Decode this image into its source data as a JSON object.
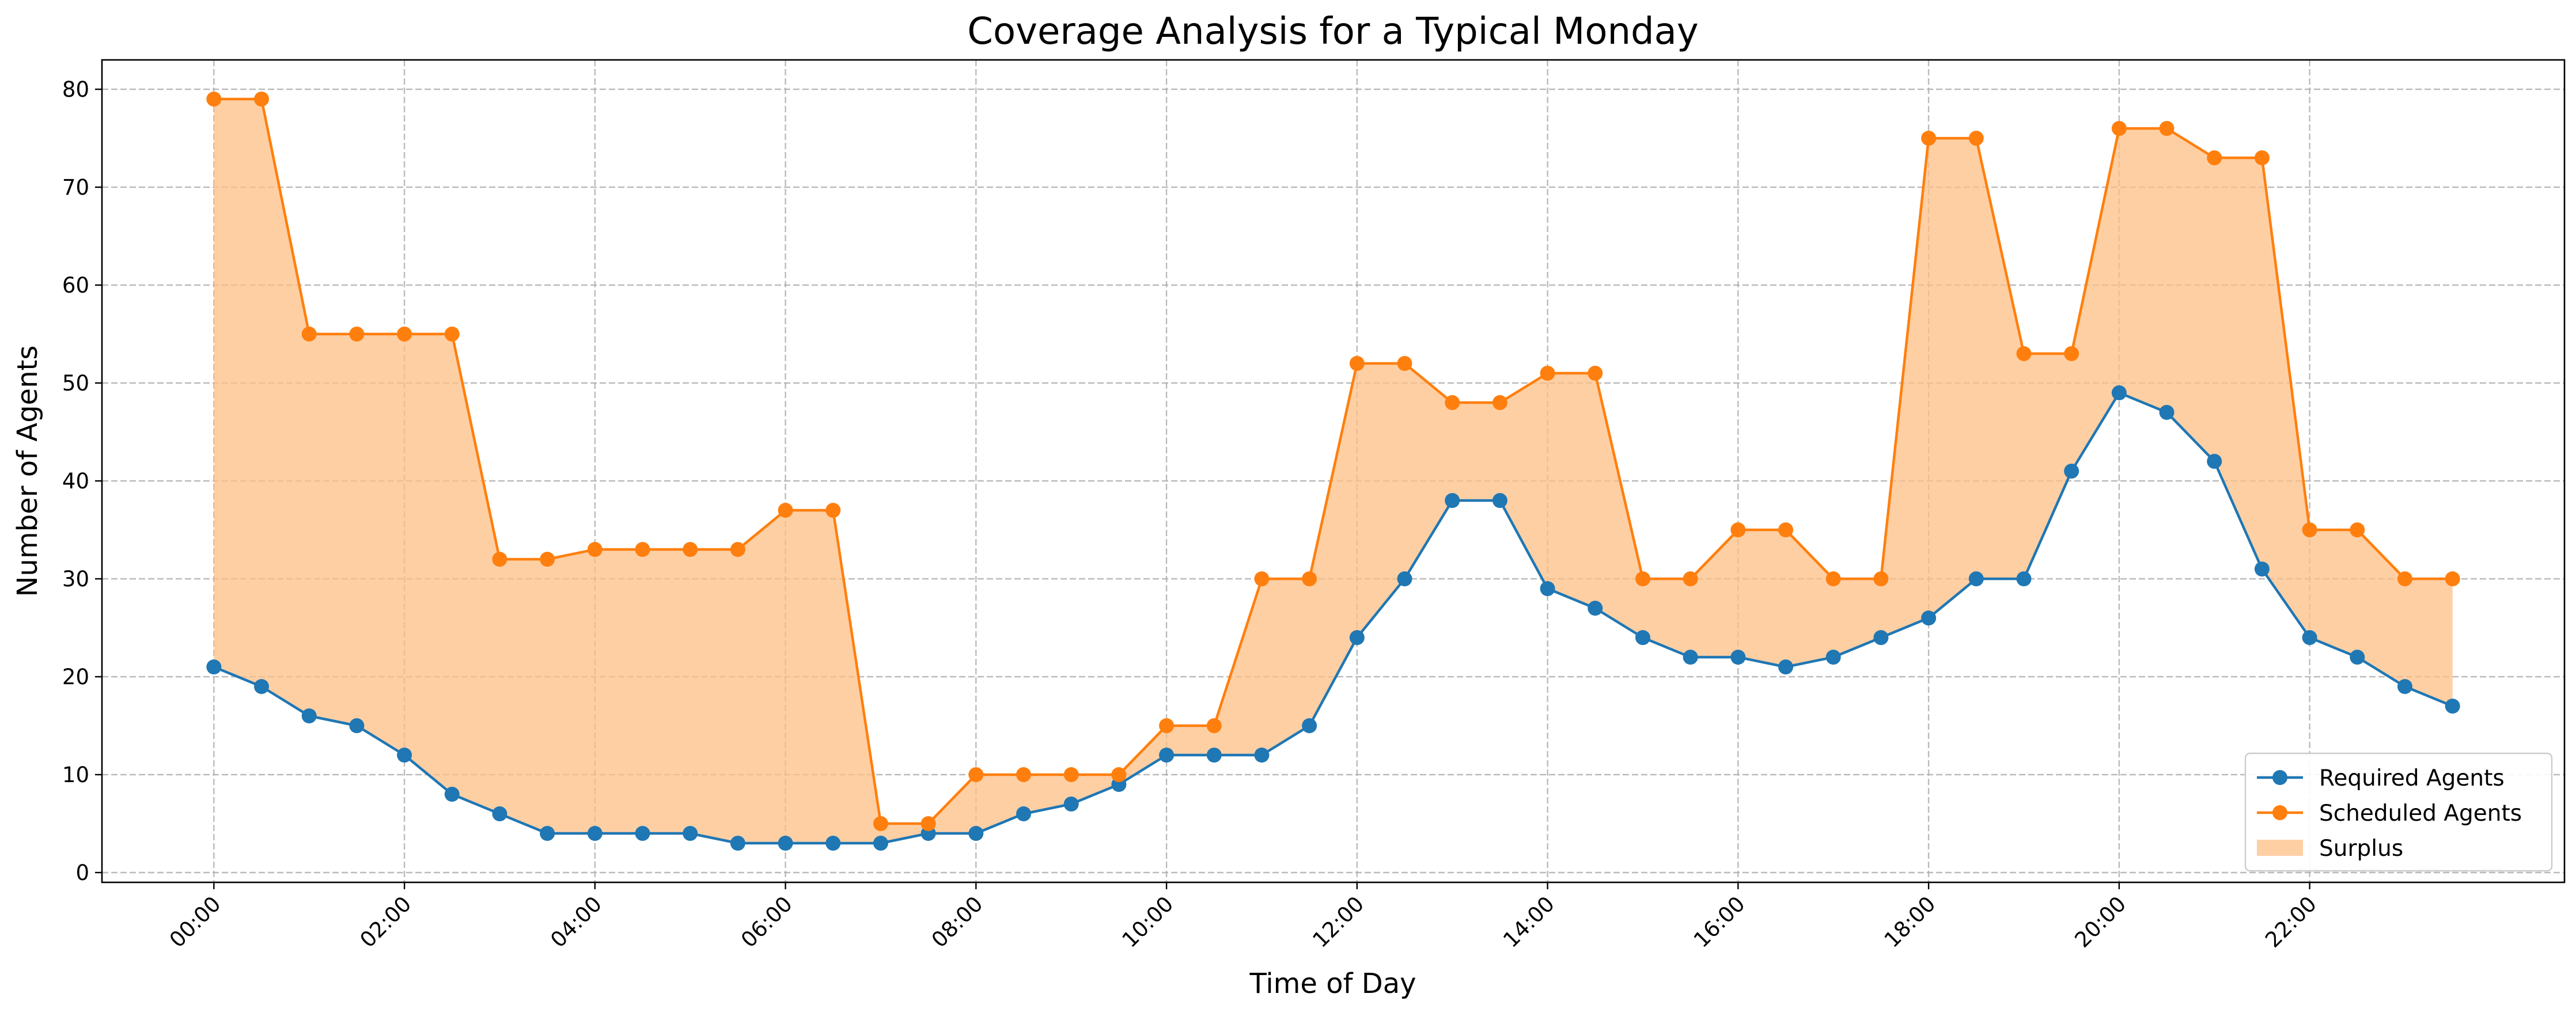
{
  "chart_data": {
    "type": "line",
    "title": "Coverage Analysis for a Typical Monday",
    "xlabel": "Time of Day",
    "ylabel": "Number of Agents",
    "x": [
      "00:00",
      "00:30",
      "01:00",
      "01:30",
      "02:00",
      "02:30",
      "03:00",
      "03:30",
      "04:00",
      "04:30",
      "05:00",
      "05:30",
      "06:00",
      "06:30",
      "07:00",
      "07:30",
      "08:00",
      "08:30",
      "09:00",
      "09:30",
      "10:00",
      "10:30",
      "11:00",
      "11:30",
      "12:00",
      "12:30",
      "13:00",
      "13:30",
      "14:00",
      "14:30",
      "15:00",
      "15:30",
      "16:00",
      "16:30",
      "17:00",
      "17:30",
      "18:00",
      "18:30",
      "19:00",
      "19:30",
      "20:00",
      "20:30",
      "21:00",
      "21:30",
      "22:00",
      "22:30",
      "23:00",
      "23:30"
    ],
    "xticks": [
      "00:00",
      "02:00",
      "04:00",
      "06:00",
      "08:00",
      "10:00",
      "12:00",
      "14:00",
      "16:00",
      "18:00",
      "20:00",
      "22:00"
    ],
    "yticks": [
      0,
      10,
      20,
      30,
      40,
      50,
      60,
      70,
      80
    ],
    "ylim": [
      0,
      83
    ],
    "grid": true,
    "legend_position": "lower right",
    "series": [
      {
        "name": "Required Agents",
        "color": "#1f77b4",
        "values": [
          21,
          19,
          16,
          15,
          12,
          8,
          6,
          4,
          4,
          4,
          4,
          3,
          3,
          3,
          3,
          4,
          4,
          6,
          7,
          9,
          12,
          12,
          12,
          15,
          24,
          30,
          38,
          38,
          29,
          27,
          24,
          22,
          22,
          21,
          22,
          24,
          26,
          30,
          30,
          41,
          49,
          47,
          42,
          31,
          24,
          22,
          19,
          17
        ]
      },
      {
        "name": "Scheduled Agents",
        "color": "#ff7f0e",
        "values": [
          79,
          79,
          55,
          55,
          55,
          55,
          32,
          32,
          33,
          33,
          33,
          33,
          37,
          37,
          5,
          5,
          10,
          10,
          10,
          10,
          15,
          15,
          30,
          30,
          52,
          52,
          48,
          48,
          51,
          51,
          30,
          30,
          35,
          35,
          30,
          30,
          75,
          75,
          53,
          53,
          76,
          76,
          73,
          73,
          35,
          35,
          30,
          30
        ]
      }
    ],
    "fill": {
      "name": "Surplus",
      "color": "#ffbf86",
      "between": [
        "Required Agents",
        "Scheduled Agents"
      ]
    }
  }
}
